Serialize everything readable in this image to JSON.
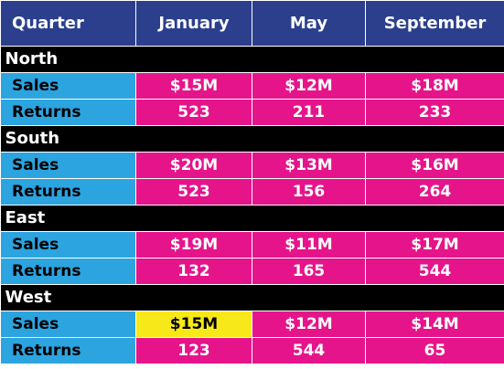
{
  "colors": {
    "header_bg": "#2b3f8c",
    "region_bg": "#000000",
    "label_bg": "#2ba4e0",
    "value_bg": "#e6148b",
    "highlight_bg": "#f7e81a"
  },
  "header": {
    "quarter_label": "Quarter",
    "months": [
      "January",
      "May",
      "September"
    ]
  },
  "regions": [
    {
      "name": "North",
      "sales": {
        "label": "Sales",
        "values": [
          "$15M",
          "$12M",
          "$18M"
        ]
      },
      "returns": {
        "label": "Returns",
        "values": [
          "523",
          "211",
          "233"
        ]
      }
    },
    {
      "name": "South",
      "sales": {
        "label": "Sales",
        "values": [
          "$20M",
          "$13M",
          "$16M"
        ]
      },
      "returns": {
        "label": "Returns",
        "values": [
          "523",
          "156",
          "264"
        ]
      }
    },
    {
      "name": "East",
      "sales": {
        "label": "Sales",
        "values": [
          "$19M",
          "$11M",
          "$17M"
        ]
      },
      "returns": {
        "label": "Returns",
        "values": [
          "132",
          "165",
          "544"
        ]
      }
    },
    {
      "name": "West",
      "sales": {
        "label": "Sales",
        "values": [
          "$15M",
          "$12M",
          "$14M"
        ],
        "highlighted_index": 0
      },
      "returns": {
        "label": "Returns",
        "values": [
          "123",
          "544",
          "65"
        ]
      }
    }
  ]
}
